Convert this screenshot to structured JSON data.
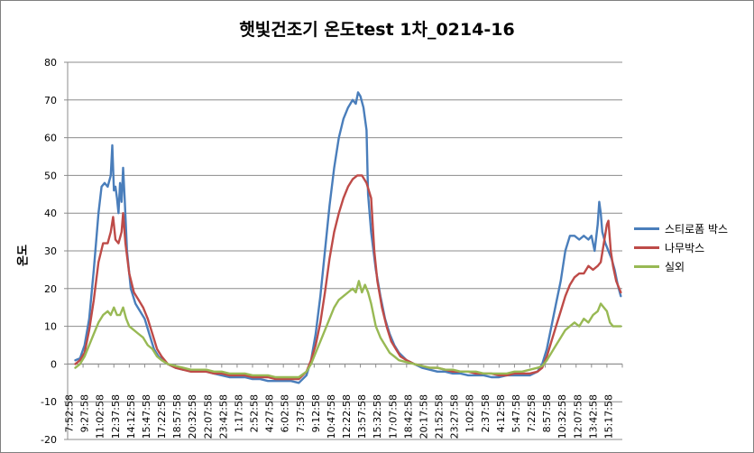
{
  "chart_data": {
    "type": "line",
    "title": "햇빛건조기 온도test 1차_0214-16",
    "ylabel": "온도",
    "xlabel": "",
    "ylim": [
      -20,
      80
    ],
    "yticks": [
      "80",
      "70",
      "60",
      "50",
      "40",
      "30",
      "20",
      "10",
      "0",
      "-10",
      "-20"
    ],
    "ytick_values": [
      80,
      70,
      60,
      50,
      40,
      30,
      20,
      10,
      0,
      -10,
      -20
    ],
    "grid": "horizontal",
    "legend_position": "right",
    "categories": [
      "7:52:58",
      "9:27:58",
      "11:02:58",
      "12:37:58",
      "14:12:58",
      "15:47:58",
      "17:22:58",
      "18:57:58",
      "20:32:58",
      "22:07:58",
      "23:42:58",
      "1:17:58",
      "2:52:58",
      "4:27:58",
      "6:02:58",
      "7:37:58",
      "9:12:58",
      "10:47:58",
      "12:22:58",
      "13:57:58",
      "15:32:58",
      "17:07:58",
      "18:42:58",
      "20:17:58",
      "21:52:58",
      "23:27:58",
      "1:02:58",
      "2:37:58",
      "4:12:58",
      "5:47:58",
      "7:22:58",
      "8:57:58",
      "10:32:58",
      "12:07:58",
      "13:42:58",
      "15:17:58"
    ],
    "series": [
      {
        "name": "스티로폼 박스",
        "color": "#4a7ebb",
        "points": [
          [
            0,
            1
          ],
          [
            0.3,
            1.5
          ],
          [
            0.6,
            5
          ],
          [
            0.9,
            12
          ],
          [
            1.2,
            25
          ],
          [
            1.5,
            40
          ],
          [
            1.7,
            47
          ],
          [
            1.9,
            48
          ],
          [
            2.1,
            47
          ],
          [
            2.3,
            50
          ],
          [
            2.4,
            58
          ],
          [
            2.5,
            46
          ],
          [
            2.6,
            47
          ],
          [
            2.7,
            44
          ],
          [
            2.8,
            40
          ],
          [
            2.9,
            48
          ],
          [
            3.0,
            43
          ],
          [
            3.1,
            52
          ],
          [
            3.2,
            44
          ],
          [
            3.35,
            30
          ],
          [
            3.6,
            20
          ],
          [
            3.9,
            16
          ],
          [
            4.2,
            14
          ],
          [
            4.5,
            12
          ],
          [
            4.8,
            8
          ],
          [
            5.1,
            4
          ],
          [
            5.4,
            2
          ],
          [
            5.7,
            1
          ],
          [
            6.0,
            0
          ],
          [
            6.5,
            -1
          ],
          [
            7,
            -1.5
          ],
          [
            7.5,
            -1.5
          ],
          [
            8,
            -2
          ],
          [
            8.5,
            -2
          ],
          [
            9,
            -2.5
          ],
          [
            9.5,
            -3
          ],
          [
            10,
            -3.5
          ],
          [
            10.5,
            -3.5
          ],
          [
            11,
            -3.5
          ],
          [
            11.5,
            -4
          ],
          [
            12,
            -4
          ],
          [
            12.5,
            -4.5
          ],
          [
            13,
            -4.5
          ],
          [
            13.5,
            -4.5
          ],
          [
            14,
            -4.5
          ],
          [
            14.5,
            -5
          ],
          [
            15.0,
            -3
          ],
          [
            15.3,
            1
          ],
          [
            15.6,
            8
          ],
          [
            15.9,
            18
          ],
          [
            16.2,
            30
          ],
          [
            16.5,
            42
          ],
          [
            16.8,
            52
          ],
          [
            17.1,
            60
          ],
          [
            17.4,
            65
          ],
          [
            17.7,
            68
          ],
          [
            18.0,
            70
          ],
          [
            18.2,
            69
          ],
          [
            18.35,
            72
          ],
          [
            18.5,
            71
          ],
          [
            18.7,
            68
          ],
          [
            18.9,
            62
          ],
          [
            19.0,
            45
          ],
          [
            19.2,
            35
          ],
          [
            19.5,
            25
          ],
          [
            19.8,
            18
          ],
          [
            20.1,
            12
          ],
          [
            20.4,
            8
          ],
          [
            20.7,
            5
          ],
          [
            21.0,
            3
          ],
          [
            21.5,
            1
          ],
          [
            22,
            0
          ],
          [
            22.5,
            -1
          ],
          [
            23,
            -1.5
          ],
          [
            23.5,
            -2
          ],
          [
            24,
            -2
          ],
          [
            24.5,
            -2.5
          ],
          [
            25,
            -2.5
          ],
          [
            25.5,
            -3
          ],
          [
            26,
            -3
          ],
          [
            26.5,
            -3
          ],
          [
            27,
            -3.5
          ],
          [
            27.5,
            -3.5
          ],
          [
            28,
            -3
          ],
          [
            28.5,
            -3
          ],
          [
            29,
            -3
          ],
          [
            29.5,
            -3
          ],
          [
            30,
            -2
          ],
          [
            30.3,
            0
          ],
          [
            30.6,
            4
          ],
          [
            30.9,
            10
          ],
          [
            31.2,
            16
          ],
          [
            31.5,
            22
          ],
          [
            31.8,
            30
          ],
          [
            32.1,
            34
          ],
          [
            32.4,
            34
          ],
          [
            32.7,
            33
          ],
          [
            33.0,
            34
          ],
          [
            33.3,
            33
          ],
          [
            33.5,
            34
          ],
          [
            33.7,
            30
          ],
          [
            33.9,
            37
          ],
          [
            34.0,
            43
          ],
          [
            34.1,
            40
          ],
          [
            34.2,
            35
          ],
          [
            34.4,
            32
          ],
          [
            34.6,
            30
          ],
          [
            34.8,
            28
          ],
          [
            35.0,
            25
          ],
          [
            35.2,
            21
          ],
          [
            35.4,
            18
          ]
        ]
      },
      {
        "name": "나무박스",
        "color": "#be4b48",
        "points": [
          [
            0,
            0
          ],
          [
            0.3,
            1
          ],
          [
            0.6,
            3
          ],
          [
            0.9,
            9
          ],
          [
            1.2,
            17
          ],
          [
            1.5,
            27
          ],
          [
            1.8,
            32
          ],
          [
            2.1,
            32
          ],
          [
            2.3,
            35
          ],
          [
            2.45,
            39
          ],
          [
            2.6,
            33
          ],
          [
            2.8,
            32
          ],
          [
            3.0,
            35
          ],
          [
            3.1,
            40
          ],
          [
            3.25,
            32
          ],
          [
            3.5,
            24
          ],
          [
            3.8,
            19
          ],
          [
            4.1,
            17
          ],
          [
            4.4,
            15
          ],
          [
            4.7,
            12
          ],
          [
            5.0,
            8
          ],
          [
            5.3,
            4
          ],
          [
            5.6,
            2
          ],
          [
            6.0,
            0
          ],
          [
            6.5,
            -1
          ],
          [
            7,
            -1.5
          ],
          [
            7.5,
            -2
          ],
          [
            8,
            -2
          ],
          [
            8.5,
            -2
          ],
          [
            9,
            -2.5
          ],
          [
            9.5,
            -2.5
          ],
          [
            10,
            -3
          ],
          [
            10.5,
            -3
          ],
          [
            11,
            -3
          ],
          [
            11.5,
            -3.5
          ],
          [
            12,
            -3.5
          ],
          [
            12.5,
            -3.5
          ],
          [
            13,
            -4
          ],
          [
            13.5,
            -4
          ],
          [
            14,
            -4
          ],
          [
            14.5,
            -4
          ],
          [
            15.0,
            -2
          ],
          [
            15.3,
            1
          ],
          [
            15.6,
            5
          ],
          [
            15.9,
            11
          ],
          [
            16.2,
            19
          ],
          [
            16.5,
            28
          ],
          [
            16.8,
            35
          ],
          [
            17.1,
            40
          ],
          [
            17.4,
            44
          ],
          [
            17.7,
            47
          ],
          [
            18.0,
            49
          ],
          [
            18.3,
            50
          ],
          [
            18.6,
            50
          ],
          [
            18.9,
            48
          ],
          [
            19.2,
            44
          ],
          [
            19.4,
            30
          ],
          [
            19.6,
            22
          ],
          [
            19.9,
            15
          ],
          [
            20.2,
            10
          ],
          [
            20.5,
            6
          ],
          [
            20.8,
            4
          ],
          [
            21.1,
            2
          ],
          [
            21.5,
            1
          ],
          [
            22,
            0
          ],
          [
            22.5,
            -0.5
          ],
          [
            23,
            -1
          ],
          [
            23.5,
            -1
          ],
          [
            24,
            -1.5
          ],
          [
            24.5,
            -2
          ],
          [
            25,
            -2
          ],
          [
            25.5,
            -2
          ],
          [
            26,
            -2.5
          ],
          [
            26.5,
            -2.5
          ],
          [
            27,
            -2.5
          ],
          [
            27.5,
            -3
          ],
          [
            28,
            -3
          ],
          [
            28.5,
            -2.5
          ],
          [
            29,
            -2.5
          ],
          [
            29.5,
            -2.5
          ],
          [
            30,
            -2
          ],
          [
            30.3,
            -1
          ],
          [
            30.6,
            2
          ],
          [
            30.9,
            6
          ],
          [
            31.2,
            10
          ],
          [
            31.5,
            14
          ],
          [
            31.8,
            18
          ],
          [
            32.1,
            21
          ],
          [
            32.4,
            23
          ],
          [
            32.7,
            24
          ],
          [
            33.0,
            24
          ],
          [
            33.3,
            26
          ],
          [
            33.6,
            25
          ],
          [
            33.9,
            26
          ],
          [
            34.1,
            27
          ],
          [
            34.3,
            32
          ],
          [
            34.5,
            37
          ],
          [
            34.6,
            38
          ],
          [
            34.75,
            30
          ],
          [
            34.9,
            26
          ],
          [
            35.1,
            22
          ],
          [
            35.4,
            19
          ]
        ]
      },
      {
        "name": "실외",
        "color": "#98b954",
        "points": [
          [
            0,
            -1
          ],
          [
            0.3,
            0
          ],
          [
            0.6,
            2
          ],
          [
            0.9,
            5
          ],
          [
            1.2,
            8
          ],
          [
            1.5,
            11
          ],
          [
            1.8,
            13
          ],
          [
            2.1,
            14
          ],
          [
            2.3,
            13
          ],
          [
            2.5,
            15
          ],
          [
            2.7,
            13
          ],
          [
            2.9,
            13
          ],
          [
            3.1,
            15
          ],
          [
            3.3,
            12
          ],
          [
            3.5,
            10
          ],
          [
            3.8,
            9
          ],
          [
            4.1,
            8
          ],
          [
            4.4,
            7
          ],
          [
            4.7,
            5
          ],
          [
            5.0,
            4
          ],
          [
            5.3,
            2
          ],
          [
            5.6,
            1
          ],
          [
            6.0,
            0
          ],
          [
            6.5,
            -0.5
          ],
          [
            7,
            -1
          ],
          [
            7.5,
            -1.5
          ],
          [
            8,
            -1.5
          ],
          [
            8.5,
            -1.5
          ],
          [
            9,
            -2
          ],
          [
            9.5,
            -2
          ],
          [
            10,
            -2.5
          ],
          [
            10.5,
            -2.5
          ],
          [
            11,
            -2.5
          ],
          [
            11.5,
            -3
          ],
          [
            12,
            -3
          ],
          [
            12.5,
            -3
          ],
          [
            13,
            -3.5
          ],
          [
            13.5,
            -3.5
          ],
          [
            14,
            -3.5
          ],
          [
            14.5,
            -3.5
          ],
          [
            15.0,
            -2
          ],
          [
            15.3,
            0
          ],
          [
            15.6,
            3
          ],
          [
            15.9,
            6
          ],
          [
            16.2,
            9
          ],
          [
            16.5,
            12
          ],
          [
            16.8,
            15
          ],
          [
            17.1,
            17
          ],
          [
            17.4,
            18
          ],
          [
            17.7,
            19
          ],
          [
            18.0,
            20
          ],
          [
            18.2,
            19
          ],
          [
            18.4,
            22
          ],
          [
            18.6,
            19
          ],
          [
            18.8,
            21
          ],
          [
            19.0,
            19
          ],
          [
            19.2,
            16
          ],
          [
            19.5,
            10
          ],
          [
            19.8,
            7
          ],
          [
            20.1,
            5
          ],
          [
            20.4,
            3
          ],
          [
            20.7,
            2
          ],
          [
            21.0,
            1
          ],
          [
            21.5,
            0.5
          ],
          [
            22,
            0
          ],
          [
            22.5,
            -0.5
          ],
          [
            23,
            -1
          ],
          [
            23.5,
            -1
          ],
          [
            24,
            -1.5
          ],
          [
            24.5,
            -1.5
          ],
          [
            25,
            -2
          ],
          [
            25.5,
            -2
          ],
          [
            26,
            -2
          ],
          [
            26.5,
            -2.5
          ],
          [
            27,
            -2.5
          ],
          [
            27.5,
            -2.5
          ],
          [
            28,
            -2.5
          ],
          [
            28.5,
            -2
          ],
          [
            29,
            -2
          ],
          [
            29.5,
            -1.5
          ],
          [
            30,
            -1
          ],
          [
            30.3,
            -0.5
          ],
          [
            30.6,
            1
          ],
          [
            30.9,
            3
          ],
          [
            31.2,
            5
          ],
          [
            31.5,
            7
          ],
          [
            31.8,
            9
          ],
          [
            32.1,
            10
          ],
          [
            32.4,
            11
          ],
          [
            32.7,
            10
          ],
          [
            33.0,
            12
          ],
          [
            33.3,
            11
          ],
          [
            33.6,
            13
          ],
          [
            33.9,
            14
          ],
          [
            34.1,
            16
          ],
          [
            34.3,
            15
          ],
          [
            34.5,
            14
          ],
          [
            34.7,
            11
          ],
          [
            34.9,
            10
          ],
          [
            35.1,
            10
          ],
          [
            35.4,
            10
          ]
        ]
      }
    ]
  }
}
